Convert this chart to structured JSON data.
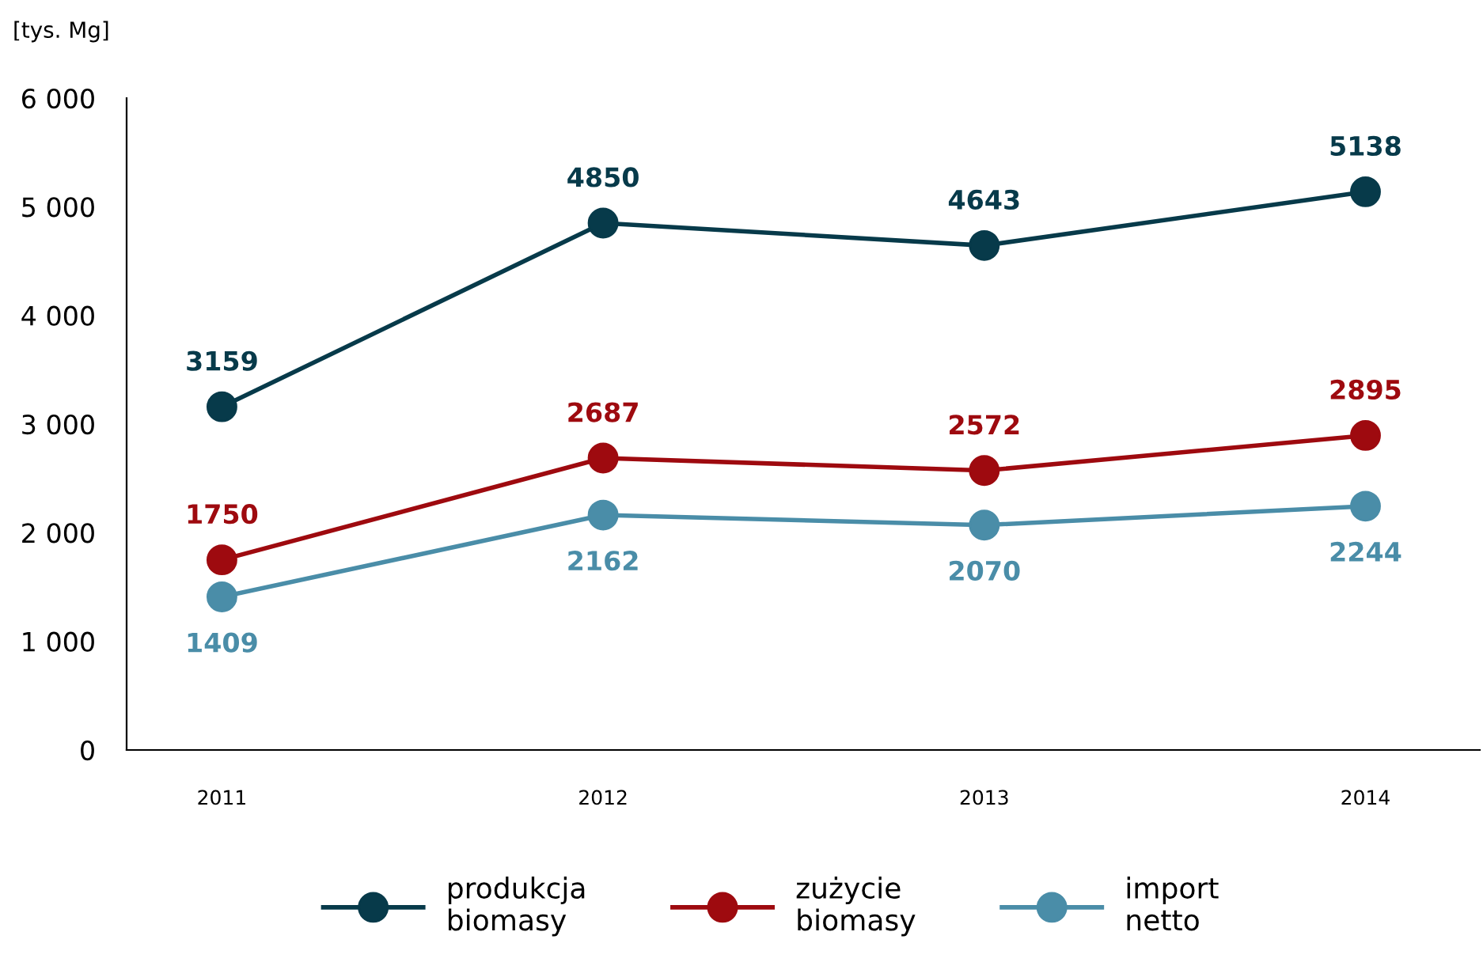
{
  "chart_data": {
    "type": "line",
    "ylabel": "[tys. Mg]",
    "categories": [
      "2011",
      "2012",
      "2013",
      "2014"
    ],
    "series": [
      {
        "name": "produkcja\nbiomasy",
        "color": "#073a4a",
        "values": [
          3159,
          4850,
          4643,
          5138
        ]
      },
      {
        "name": "zużycie\nbiomasy",
        "color": "#9e0a0f",
        "values": [
          1750,
          2687,
          2572,
          2895
        ]
      },
      {
        "name": "import\nnetto",
        "color": "#4a8da8",
        "values": [
          1409,
          2162,
          2070,
          2244
        ]
      }
    ],
    "ylim": [
      0,
      6000
    ],
    "yticks": [
      0,
      {
        "value": 1000,
        "label": "1 000"
      },
      {
        "value": 2000,
        "label": "2 000"
      },
      {
        "value": 3000,
        "label": "3 000"
      },
      {
        "value": 4000,
        "label": "4 000"
      },
      {
        "value": 5000,
        "label": "5 000"
      },
      {
        "value": 6000,
        "label": "6 000"
      }
    ],
    "data_labels": true,
    "marker": "circle",
    "line_style": "solid",
    "grid": false,
    "legend": "bottom"
  }
}
